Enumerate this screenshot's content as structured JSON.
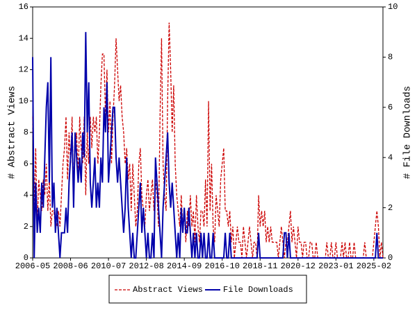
{
  "chart_data": {
    "type": "line",
    "y_label": "# Abstract Views",
    "y2_label": "# File Downloads",
    "x": [
      "2006-05",
      "2006-06",
      "2006-07",
      "2006-08",
      "2006-09",
      "2006-10",
      "2006-11",
      "2006-12",
      "2007-01",
      "2007-02",
      "2007-03",
      "2007-04",
      "2007-05",
      "2007-06",
      "2007-07",
      "2007-08",
      "2007-09",
      "2007-10",
      "2007-11",
      "2007-12",
      "2008-01",
      "2008-02",
      "2008-03",
      "2008-04",
      "2008-05",
      "2008-06",
      "2008-07",
      "2008-08",
      "2008-09",
      "2008-10",
      "2008-11",
      "2008-12",
      "2009-01",
      "2009-02",
      "2009-03",
      "2009-04",
      "2009-05",
      "2009-06",
      "2009-07",
      "2009-08",
      "2009-09",
      "2009-10",
      "2009-11",
      "2009-12",
      "2010-01",
      "2010-02",
      "2010-03",
      "2010-04",
      "2010-05",
      "2010-06",
      "2010-07",
      "2010-08",
      "2010-09",
      "2010-10",
      "2010-11",
      "2010-12",
      "2011-01",
      "2011-02",
      "2011-03",
      "2011-04",
      "2011-05",
      "2011-06",
      "2011-07",
      "2011-08",
      "2011-09",
      "2011-10",
      "2011-11",
      "2011-12",
      "2012-01",
      "2012-02",
      "2012-03",
      "2012-04",
      "2012-05",
      "2012-06",
      "2012-07",
      "2012-08",
      "2012-09",
      "2012-10",
      "2012-11",
      "2012-12",
      "2013-01",
      "2013-02",
      "2013-03",
      "2013-04",
      "2013-05",
      "2013-06",
      "2013-07",
      "2013-08",
      "2013-09",
      "2013-10",
      "2013-11",
      "2013-12",
      "2014-01",
      "2014-02",
      "2014-03",
      "2014-04",
      "2014-05",
      "2014-06",
      "2014-07",
      "2014-08",
      "2014-09",
      "2014-10",
      "2014-11",
      "2014-12",
      "2015-01",
      "2015-02",
      "2015-03",
      "2015-04",
      "2015-05",
      "2015-06",
      "2015-07",
      "2015-08",
      "2015-09",
      "2015-10",
      "2015-11",
      "2015-12",
      "2016-01",
      "2016-02",
      "2016-03",
      "2016-04",
      "2016-05",
      "2016-06",
      "2016-07",
      "2016-08",
      "2016-09",
      "2016-10",
      "2016-11",
      "2016-12",
      "2017-01",
      "2017-02",
      "2017-03",
      "2017-04",
      "2017-05",
      "2017-06",
      "2017-07",
      "2017-08",
      "2017-09",
      "2017-10",
      "2017-11",
      "2017-12",
      "2018-01",
      "2018-02",
      "2018-03",
      "2018-04",
      "2018-05",
      "2018-06",
      "2018-07",
      "2018-08",
      "2018-09",
      "2018-10",
      "2018-11",
      "2018-12",
      "2019-01",
      "2019-02",
      "2019-03",
      "2019-04",
      "2019-05",
      "2019-06",
      "2019-07",
      "2019-08",
      "2019-09",
      "2019-10",
      "2019-11",
      "2019-12",
      "2020-01",
      "2020-02",
      "2020-03",
      "2020-04",
      "2020-05",
      "2020-06",
      "2020-07",
      "2020-08",
      "2020-09",
      "2020-10",
      "2020-11",
      "2020-12",
      "2021-01",
      "2021-02",
      "2021-03",
      "2021-04",
      "2021-05",
      "2021-06",
      "2021-07",
      "2021-08",
      "2021-09",
      "2021-10",
      "2021-11",
      "2021-12",
      "2022-01",
      "2022-02",
      "2022-03",
      "2022-04",
      "2022-05",
      "2022-06",
      "2022-07",
      "2022-08",
      "2022-09",
      "2022-10",
      "2022-11",
      "2022-12",
      "2023-01",
      "2023-02",
      "2023-03",
      "2023-04",
      "2023-05",
      "2023-06",
      "2023-07",
      "2023-08",
      "2023-09",
      "2023-10",
      "2023-11",
      "2023-12",
      "2024-01",
      "2024-02",
      "2024-03",
      "2024-04",
      "2024-05",
      "2024-06",
      "2024-07",
      "2024-08",
      "2024-09",
      "2024-10",
      "2024-11",
      "2024-12",
      "2025-01",
      "2025-02",
      "2025-03",
      "2025-04",
      "2025-05",
      "2025-06",
      "2025-07",
      "2025-08"
    ],
    "xticks": [
      "2006-05",
      "2008-06",
      "2010-07",
      "2012-08",
      "2014-09",
      "2016-10",
      "2018-11",
      "2020-12",
      "2023-01",
      "2025-02"
    ],
    "ylim": [
      0,
      16
    ],
    "yticks": [
      0,
      2,
      4,
      6,
      8,
      10,
      12,
      14,
      16
    ],
    "y2lim": [
      0,
      10
    ],
    "y2ticks": [
      0,
      2,
      4,
      6,
      8,
      10
    ],
    "series": [
      {
        "name": "Abstract Views",
        "color": "#cc0000",
        "dashed": true,
        "values": [
          9,
          3,
          7,
          2,
          5,
          4,
          3,
          5,
          4,
          6,
          3,
          5,
          2,
          3,
          3,
          2,
          2,
          3,
          2,
          4,
          6,
          7,
          9,
          5,
          8,
          6,
          9,
          4,
          7,
          8,
          5,
          9,
          7,
          6,
          9,
          4,
          8,
          6,
          9,
          7,
          9,
          8,
          9,
          6,
          8,
          11,
          13,
          13,
          9,
          12,
          8,
          10,
          6,
          9,
          11,
          14,
          12,
          10,
          11,
          9,
          8,
          6,
          7,
          5,
          6,
          3,
          6,
          4,
          2,
          3,
          6,
          7,
          4,
          3,
          2,
          4,
          5,
          3,
          4,
          5,
          3,
          5,
          4,
          2,
          9,
          14,
          6,
          4,
          3,
          10,
          15,
          12,
          8,
          11,
          6,
          4,
          3,
          2,
          4,
          2,
          3,
          1,
          3,
          2,
          4,
          2,
          3,
          1,
          4,
          2,
          1,
          3,
          3,
          2,
          5,
          2,
          10,
          3,
          6,
          2,
          1,
          4,
          3,
          2,
          5,
          6,
          7,
          3,
          3,
          2,
          3,
          1,
          2,
          0,
          1,
          2,
          1,
          1,
          0,
          2,
          1,
          0,
          1,
          2,
          1,
          0,
          1,
          1,
          0,
          4,
          2,
          3,
          2,
          3,
          1,
          2,
          1,
          2,
          1,
          1,
          1,
          1,
          0,
          1,
          2,
          1,
          0,
          1,
          1,
          2,
          3,
          1,
          2,
          1,
          0,
          2,
          1,
          1,
          0,
          1,
          1,
          0,
          0,
          1,
          1,
          0,
          0,
          1,
          0,
          0,
          0,
          0,
          0,
          0,
          1,
          0,
          0,
          1,
          0,
          0,
          1,
          0,
          0,
          0,
          1,
          0,
          1,
          0,
          0,
          1,
          0,
          0,
          1,
          0,
          0,
          0,
          0,
          0,
          0,
          1,
          0,
          0,
          0,
          0,
          0,
          1,
          2,
          3,
          2,
          0,
          1,
          0
        ]
      },
      {
        "name": "File Downloads",
        "color": "#0000aa",
        "dashed": false,
        "axis": "y2",
        "values": [
          8,
          0,
          3,
          1,
          2,
          1,
          3,
          2,
          4,
          6,
          7,
          3,
          8,
          2,
          3,
          1,
          2,
          1,
          0,
          1,
          1,
          1,
          2,
          1,
          3,
          4,
          5,
          2,
          5,
          4,
          3,
          4,
          3,
          5,
          4,
          9,
          5,
          7,
          3,
          2,
          3,
          4,
          2,
          3,
          2,
          4,
          3,
          6,
          5,
          7,
          3,
          4,
          5,
          6,
          6,
          4,
          3,
          4,
          3,
          2,
          1,
          2,
          4,
          2,
          1,
          0,
          1,
          0,
          0,
          1,
          2,
          3,
          1,
          2,
          1,
          0,
          1,
          0,
          0,
          1,
          0,
          4,
          3,
          2,
          1,
          0,
          2,
          3,
          4,
          5,
          3,
          2,
          3,
          2,
          1,
          0,
          1,
          0,
          2,
          1,
          2,
          1,
          1,
          2,
          1,
          0,
          1,
          0,
          1,
          0,
          0,
          1,
          0,
          1,
          0,
          0,
          1,
          0,
          0,
          1,
          0,
          0,
          0,
          0,
          0,
          0,
          0,
          1,
          0,
          0,
          1,
          0,
          0,
          0,
          0,
          0,
          0,
          0,
          0,
          0,
          0,
          0,
          0,
          0,
          0,
          0,
          0,
          0,
          0,
          1,
          0,
          0,
          0,
          0,
          0,
          0,
          0,
          0,
          0,
          0,
          0,
          0,
          0,
          0,
          0,
          0,
          1,
          1,
          0,
          1,
          0,
          0,
          0,
          0,
          0,
          0,
          0,
          0,
          0,
          0,
          0,
          0,
          0,
          0,
          0,
          0,
          0,
          0,
          0,
          0,
          0,
          0,
          0,
          0,
          0,
          0,
          0,
          0,
          0,
          0,
          0,
          0,
          0,
          0,
          0,
          0,
          0,
          0,
          0,
          0,
          0,
          0,
          0,
          0,
          0,
          0,
          0,
          0,
          0,
          0,
          0,
          0,
          0,
          0,
          0,
          0,
          0,
          1,
          0,
          0,
          0,
          0
        ]
      }
    ]
  }
}
